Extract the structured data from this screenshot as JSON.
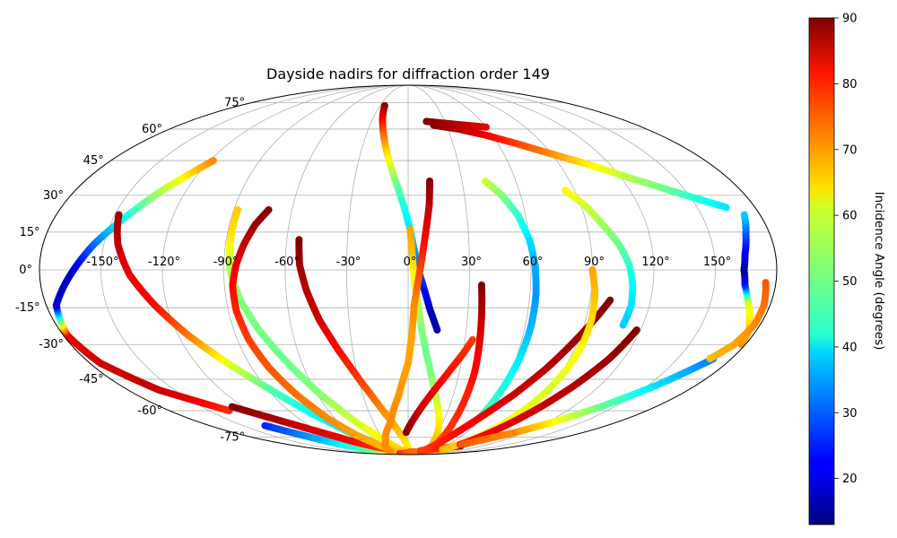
{
  "chart_data": {
    "type": "scatter",
    "projection": "mollweide",
    "title": "Dayside nadirs for diffraction order 149",
    "colorbar": {
      "label": "Incidence Angle (degrees)",
      "colormap": "jet",
      "min": 13,
      "max": 90,
      "ticks": [
        20,
        30,
        40,
        50,
        60,
        70,
        80,
        90
      ]
    },
    "grid": true,
    "lon_ticks": [
      -150,
      -120,
      -90,
      -60,
      -30,
      0,
      30,
      60,
      90,
      120,
      150
    ],
    "lon_tick_labels": [
      "-150°",
      "-120°",
      "-90°",
      "-60°",
      "-30°",
      "0°",
      "30°",
      "60°",
      "90°",
      "120°",
      "150°"
    ],
    "lat_ticks": [
      75,
      60,
      45,
      30,
      15,
      0,
      -15,
      -30,
      -45,
      -60,
      -75
    ],
    "lat_tick_labels": [
      "75°",
      "60°",
      "45°",
      "30°",
      "15°",
      "0°",
      "-15°",
      "-30°",
      "-45°",
      "-60°",
      "-75°"
    ],
    "tracks": [
      {
        "lon": [
          -130,
          -105,
          -82,
          -60,
          -42
        ],
        "lat": [
          -68,
          -78,
          -86,
          -87,
          -84
        ],
        "inc": [
          25,
          38,
          52,
          64,
          70
        ]
      },
      {
        "lon": [
          -135,
          -160,
          -174,
          -178,
          -175,
          -165,
          -155,
          -145,
          -133,
          -118
        ],
        "lat": [
          -60,
          -50,
          -38,
          -26,
          -14,
          -2,
          10,
          20,
          32,
          45
        ],
        "inc": [
          77,
          85,
          84,
          82,
          20,
          17,
          30,
          42,
          55,
          70
        ]
      },
      {
        "lon": [
          -128,
          -95,
          -72,
          -55,
          -40,
          -25,
          -12
        ],
        "lat": [
          -58,
          -70,
          -78,
          -82,
          -84,
          -85,
          -85
        ],
        "inc": [
          90,
          84,
          80,
          77,
          74,
          72,
          70
        ]
      },
      {
        "lon": [
          -148,
          -143,
          -136,
          -126,
          -115,
          -102,
          -88,
          -74,
          -60,
          -48,
          -38,
          -30
        ],
        "lat": [
          22,
          10,
          -2,
          -14,
          -26,
          -38,
          -50,
          -62,
          -72,
          -78,
          -83,
          -86
        ],
        "inc": [
          88,
          85,
          82,
          80,
          72,
          60,
          48,
          42,
          40,
          45,
          55,
          62
        ]
      },
      {
        "lon": [
          -88,
          -88,
          -87,
          -83,
          -77,
          -68,
          -58,
          -45,
          -32,
          -20,
          -10
        ],
        "lat": [
          24,
          12,
          0,
          -12,
          -24,
          -38,
          -52,
          -66,
          -76,
          -83,
          -86
        ],
        "inc": [
          65,
          63,
          55,
          52,
          51,
          50,
          52,
          58,
          62,
          64,
          65
        ]
      },
      {
        "lon": [
          -72,
          -77,
          -81,
          -84,
          -86,
          -86,
          -84,
          -80,
          -74,
          -66,
          -56,
          -44,
          -32
        ],
        "lat": [
          24,
          18,
          10,
          2,
          -6,
          -16,
          -28,
          -40,
          -52,
          -64,
          -74,
          -81,
          -86
        ],
        "inc": [
          90,
          88,
          85,
          82,
          80,
          78,
          76,
          74,
          72,
          70,
          68,
          67,
          66
        ]
      },
      {
        "lon": [
          -54,
          -53,
          -50,
          -45,
          -38,
          -29,
          -19,
          -9,
          0
        ],
        "lat": [
          12,
          2,
          -8,
          -20,
          -32,
          -46,
          -60,
          -72,
          -82
        ],
        "inc": [
          90,
          88,
          86,
          84,
          80,
          76,
          70,
          66,
          62
        ]
      },
      {
        "lon": [
          -25,
          -22,
          -18,
          -14,
          -10,
          -6,
          -2,
          1,
          3,
          5,
          8,
          11,
          15
        ],
        "lat": [
          73,
          66,
          58,
          50,
          42,
          34,
          25,
          16,
          8,
          0,
          -8,
          -16,
          -24
        ],
        "inc": [
          90,
          82,
          74,
          66,
          58,
          50,
          44,
          40,
          35,
          30,
          24,
          18,
          16
        ]
      },
      {
        "lon": [
          1,
          2,
          3,
          5,
          7,
          10,
          14,
          19,
          26,
          34
        ],
        "lat": [
          16,
          6,
          -4,
          -14,
          -24,
          -34,
          -44,
          -54,
          -65,
          -78
        ],
        "inc": [
          68,
          66,
          60,
          56,
          52,
          50,
          52,
          56,
          62,
          66
        ]
      },
      {
        "lon": [
          12,
          11,
          9,
          7,
          5,
          3,
          2,
          0,
          -6,
          -15,
          -30,
          -48
        ],
        "lat": [
          36,
          26,
          16,
          6,
          -4,
          -14,
          -26,
          -38,
          -52,
          -66,
          -78,
          -86
        ],
        "inc": [
          90,
          86,
          82,
          78,
          74,
          70,
          68,
          68,
          69,
          70,
          70,
          70
        ]
      },
      {
        "lon": [
          -2,
          10,
          22,
          30,
          34
        ],
        "lat": [
          -72,
          -58,
          -44,
          -34,
          -28
        ],
        "inc": [
          90,
          84,
          80,
          78,
          76
        ]
      },
      {
        "lon": [
          -36,
          -20,
          -5,
          10,
          25,
          40,
          55,
          70
        ],
        "lat": [
          -88,
          -88,
          -87,
          -86,
          -86,
          -85,
          -84,
          -83
        ],
        "inc": [
          78,
          76,
          74,
          73,
          72,
          72,
          72,
          72
        ]
      },
      {
        "lon": [
          36,
          37,
          38,
          39,
          39,
          39,
          40,
          43
        ],
        "lat": [
          -6,
          -18,
          -30,
          -42,
          -54,
          -66,
          -76,
          -84
        ],
        "inc": [
          90,
          86,
          82,
          80,
          78,
          77,
          76,
          75
        ]
      },
      {
        "lon": [
          30,
          45,
          60,
          75,
          85
        ],
        "lat": [
          -85,
          -84,
          -83,
          -82,
          -81
        ],
        "inc": [
          76,
          76,
          78,
          80,
          90
        ]
      },
      {
        "lon": [
          43,
          50,
          56,
          60,
          62,
          63,
          63,
          62,
          60,
          58
        ],
        "lat": [
          36,
          30,
          22,
          12,
          2,
          -10,
          -22,
          -36,
          -50,
          -64
        ],
        "inc": [
          58,
          52,
          46,
          40,
          36,
          34,
          36,
          40,
          44,
          48
        ]
      },
      {
        "lon": [
          100,
          90,
          80,
          70,
          60,
          50,
          42,
          34
        ],
        "lat": [
          -12,
          -26,
          -40,
          -52,
          -62,
          -72,
          -80,
          -86
        ],
        "inc": [
          90,
          88,
          86,
          84,
          82,
          80,
          78,
          76
        ]
      },
      {
        "lon": [
          90,
          92,
          93,
          93,
          92,
          90,
          87,
          83,
          78,
          72
        ],
        "lat": [
          0,
          -10,
          -20,
          -30,
          -40,
          -50,
          -60,
          -70,
          -78,
          -84
        ],
        "inc": [
          68,
          66,
          64,
          62,
          60,
          58,
          60,
          62,
          64,
          66
        ]
      },
      {
        "lon": [
          85,
          92,
          98,
          104,
          108,
          110,
          111,
          110
        ],
        "lat": [
          32,
          26,
          18,
          10,
          2,
          -6,
          -14,
          -22
        ],
        "inc": [
          62,
          58,
          54,
          50,
          46,
          42,
          40,
          38
        ]
      },
      {
        "lon": [
          118,
          112,
          104,
          95,
          85,
          78
        ],
        "lat": [
          -24,
          -36,
          -48,
          -60,
          -72,
          -80
        ],
        "inc": [
          90,
          88,
          86,
          84,
          82,
          80
        ]
      },
      {
        "lon": [
          80,
          95,
          110,
          125,
          140,
          155,
          170
        ],
        "lat": [
          -80,
          -76,
          -72,
          -66,
          -58,
          -48,
          -36
        ],
        "inc": [
          74,
          72,
          70,
          62,
          50,
          40,
          32
        ]
      },
      {
        "lon": [
          178,
          176,
          172,
          168,
          165,
          164,
          165,
          168,
          172
        ],
        "lat": [
          -30,
          -24,
          -18,
          -12,
          -6,
          0,
          6,
          14,
          22
        ],
        "inc": [
          70,
          66,
          62,
          58,
          26,
          15,
          20,
          28,
          38
        ]
      },
      {
        "lon": [
          175,
          177,
          177,
          174,
          168
        ],
        "lat": [
          -5,
          -14,
          -22,
          -30,
          -36
        ],
        "inc": [
          74,
          72,
          70,
          68,
          66
        ]
      },
      {
        "lon": [
          20,
          38,
          55,
          72,
          90,
          108,
          126,
          145,
          165
        ],
        "lat": [
          62,
          60,
          57,
          53,
          48,
          43,
          37,
          31,
          25
        ],
        "inc": [
          90,
          86,
          82,
          76,
          70,
          62,
          55,
          48,
          40
        ]
      },
      {
        "lon": [
          15,
          30,
          45,
          60
        ],
        "lat": [
          64,
          63,
          62,
          61
        ],
        "inc": [
          90,
          88,
          85,
          82
        ]
      }
    ]
  }
}
